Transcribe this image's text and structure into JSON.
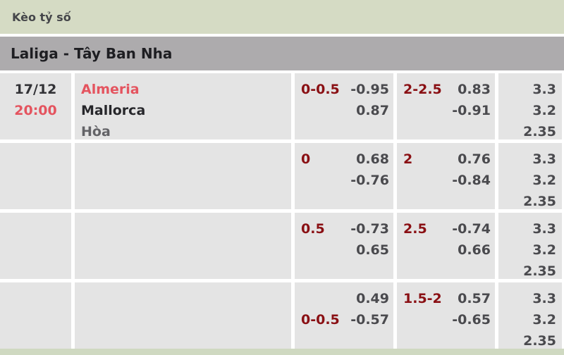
{
  "header": {
    "title": "Kèo tỷ số",
    "league": "Laliga - Tây Ban Nha"
  },
  "match": {
    "date": "17/12",
    "time": "20:00",
    "home": "Almeria",
    "away": "Mallorca",
    "draw_label": "Hòa"
  },
  "rows": [
    {
      "hc": {
        "l1_label": "0-0.5",
        "l1_val": "-0.95",
        "l2_label": "",
        "l2_val": "0.87"
      },
      "total": {
        "l1_label": "2-2.5",
        "l1_val": "0.83",
        "l2_label": "",
        "l2_val": "-0.91"
      },
      "x12": {
        "v1": "3.3",
        "v2": "3.2",
        "v3": "2.35"
      }
    },
    {
      "hc": {
        "l1_label": "0",
        "l1_val": "0.68",
        "l2_label": "",
        "l2_val": "-0.76"
      },
      "total": {
        "l1_label": "2",
        "l1_val": "0.76",
        "l2_label": "",
        "l2_val": "-0.84"
      },
      "x12": {
        "v1": "3.3",
        "v2": "3.2",
        "v3": "2.35"
      }
    },
    {
      "hc": {
        "l1_label": "0.5",
        "l1_val": "-0.73",
        "l2_label": "",
        "l2_val": "0.65"
      },
      "total": {
        "l1_label": "2.5",
        "l1_val": "-0.74",
        "l2_label": "",
        "l2_val": "0.66"
      },
      "x12": {
        "v1": "3.3",
        "v2": "3.2",
        "v3": "2.35"
      }
    },
    {
      "hc": {
        "l1_label": "",
        "l1_val": "0.49",
        "l2_label": "0-0.5",
        "l2_val": "-0.57"
      },
      "total": {
        "l1_label": "1.5-2",
        "l1_val": "0.57",
        "l2_label": "",
        "l2_val": "-0.65"
      },
      "x12": {
        "v1": "3.3",
        "v2": "3.2",
        "v3": "2.35"
      }
    }
  ],
  "colors": {
    "header_green": "#d5dbc4",
    "league_gray": "#adabad",
    "cell_gray": "#e4e4e4",
    "accent_red": "#e4545f",
    "handicap_maroon": "#8a1014",
    "odds_text": "#4a4a4e"
  }
}
